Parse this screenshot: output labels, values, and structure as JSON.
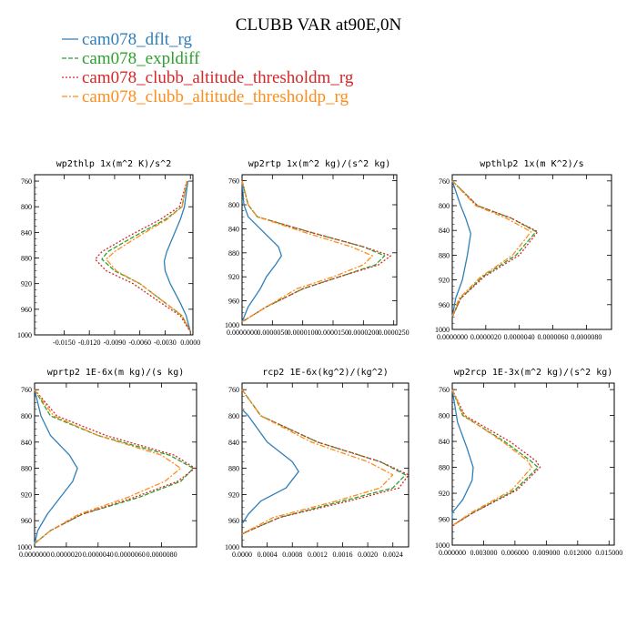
{
  "figure": {
    "title": "CLUBB VAR at90E,0N"
  },
  "colors": {
    "dflt": "#2f7fb8",
    "expldiff": "#2ea02e",
    "thresholdm": "#d62728",
    "thresholdp": "#ff8c1a"
  },
  "legend": [
    {
      "label": "cam078_dflt_rg",
      "color": "#2f7fb8",
      "style": "solid"
    },
    {
      "label": "cam078_expldiff",
      "color": "#2ea02e",
      "style": "dashed"
    },
    {
      "label": "cam078_clubb_altitude_thresholdm_rg",
      "color": "#d62728",
      "style": "dotted"
    },
    {
      "label": "cam078_clubb_altitude_thresholdp_rg",
      "color": "#ff8c1a",
      "style": "dashdot"
    }
  ],
  "chart_data": [
    {
      "type": "line",
      "title": "wp2thlp  1x(m^2 K)/s^2",
      "ylim": [
        1000,
        750
      ],
      "yticks": [
        "760",
        "800",
        "840",
        "880",
        "920",
        "960",
        "1000"
      ],
      "xlim": [
        -0.0185,
        0.0003
      ],
      "xticks": [
        "-0.0150",
        "-0.0120",
        "-0.0090",
        "-0.0060",
        "-0.0030",
        "0.0000"
      ],
      "xtick_values": [
        -0.015,
        -0.012,
        -0.009,
        -0.006,
        -0.003,
        0.0
      ],
      "series": [
        {
          "name": "cam078_dflt_rg",
          "x": [
            -0.0003,
            -0.0007,
            -0.0012,
            -0.002,
            -0.0028,
            -0.0031,
            -0.003,
            -0.0024,
            -0.0012,
            -0.0005,
            0.0
          ],
          "y": [
            760,
            800,
            820,
            845,
            870,
            885,
            900,
            920,
            950,
            970,
            995
          ]
        },
        {
          "name": "cam078_expldiff",
          "x": [
            -0.0004,
            -0.001,
            -0.003,
            -0.0065,
            -0.0098,
            -0.0105,
            -0.009,
            -0.006,
            -0.003,
            -0.001,
            0.0
          ],
          "y": [
            760,
            800,
            820,
            845,
            870,
            882,
            900,
            920,
            950,
            970,
            995
          ]
        },
        {
          "name": "cam078_clubb_altitude_thresholdm_rg",
          "x": [
            -0.0004,
            -0.0013,
            -0.0036,
            -0.0072,
            -0.0105,
            -0.0113,
            -0.01,
            -0.0068,
            -0.0035,
            -0.0012,
            0.0
          ],
          "y": [
            760,
            800,
            820,
            845,
            870,
            882,
            900,
            920,
            950,
            970,
            995
          ]
        },
        {
          "name": "cam078_clubb_altitude_thresholdp_rg",
          "x": [
            -0.0004,
            -0.001,
            -0.0028,
            -0.006,
            -0.009,
            -0.01,
            -0.0088,
            -0.006,
            -0.003,
            -0.001,
            0.0
          ],
          "y": [
            760,
            800,
            820,
            845,
            870,
            882,
            900,
            920,
            950,
            970,
            995
          ]
        }
      ]
    },
    {
      "type": "line",
      "title": "wp2rtp  1x(m^2 kg)/(s^2 kg)",
      "ylim": [
        1000,
        750
      ],
      "yticks": [
        "760",
        "800",
        "840",
        "880",
        "920",
        "960",
        "1000"
      ],
      "xlim": [
        0.0,
        2.55e-05
      ],
      "xticks": [
        "0.0000000",
        "0.0000050",
        "0.0000100",
        "0.0000150",
        "0.0000200",
        "0.0000250"
      ],
      "xtick_values": [
        0.0,
        5e-06,
        1e-05,
        1.5e-05,
        2e-05,
        2.5e-05
      ],
      "series": [
        {
          "name": "cam078_dflt_rg",
          "x": [
            0.0,
            3e-07,
            1e-06,
            3.5e-06,
            6e-06,
            6.5e-06,
            5.5e-06,
            4e-06,
            3e-06,
            1e-06,
            0.0
          ],
          "y": [
            760,
            800,
            820,
            845,
            870,
            885,
            900,
            920,
            940,
            970,
            995
          ]
        },
        {
          "name": "cam078_expldiff",
          "x": [
            0.0,
            1e-06,
            2.5e-06,
            1.1e-05,
            2e-05,
            2.35e-05,
            2.2e-05,
            1.6e-05,
            1e-05,
            4e-06,
            0.0
          ],
          "y": [
            760,
            800,
            820,
            845,
            870,
            885,
            900,
            920,
            940,
            970,
            995
          ]
        },
        {
          "name": "cam078_clubb_altitude_thresholdm_rg",
          "x": [
            0.0,
            1e-06,
            2.5e-06,
            1.1e-05,
            2e-05,
            2.45e-05,
            2.25e-05,
            1.6e-05,
            1e-05,
            4e-06,
            0.0
          ],
          "y": [
            760,
            800,
            820,
            845,
            870,
            885,
            900,
            920,
            940,
            970,
            995
          ]
        },
        {
          "name": "cam078_clubb_altitude_thresholdp_rg",
          "x": [
            0.0,
            1e-06,
            2.5e-06,
            1e-05,
            1.8e-05,
            2.15e-05,
            2e-05,
            1.5e-05,
            9e-06,
            4e-06,
            0.0
          ],
          "y": [
            760,
            800,
            820,
            845,
            870,
            885,
            900,
            920,
            940,
            970,
            995
          ]
        }
      ]
    },
    {
      "type": "line",
      "title": "wpthlp2  1x(m K^2)/s",
      "ylim": [
        1000,
        750
      ],
      "yticks": [
        "760",
        "800",
        "840",
        "880",
        "920",
        "960",
        "1000"
      ],
      "xlim": [
        0.0,
        9.5e-06
      ],
      "xticks": [
        "0.0000000",
        "0.0000020",
        "0.0000040",
        "0.0000060",
        "0.0000080"
      ],
      "xtick_values": [
        0.0,
        2e-06,
        4e-06,
        6e-06,
        8e-06
      ],
      "series": [
        {
          "name": "cam078_dflt_rg",
          "x": [
            0.0,
            5e-07,
            8e-07,
            1.1e-06,
            9e-07,
            6e-07,
            2e-07,
            0.0
          ],
          "y": [
            760,
            800,
            820,
            845,
            880,
            920,
            950,
            980
          ]
        },
        {
          "name": "cam078_expldiff",
          "x": [
            0.0,
            1.5e-06,
            3.5e-06,
            5e-06,
            3.8e-06,
            1.8e-06,
            5e-07,
            0.0
          ],
          "y": [
            760,
            800,
            820,
            842,
            880,
            915,
            950,
            980
          ]
        },
        {
          "name": "cam078_clubb_altitude_thresholdm_rg",
          "x": [
            0.0,
            1.5e-06,
            3.5e-06,
            5.1e-06,
            4e-06,
            1.9e-06,
            5e-07,
            0.0
          ],
          "y": [
            760,
            800,
            820,
            842,
            880,
            915,
            950,
            980
          ]
        },
        {
          "name": "cam078_clubb_altitude_thresholdp_rg",
          "x": [
            0.0,
            1.4e-06,
            3.2e-06,
            4.7e-06,
            3.6e-06,
            1.7e-06,
            4e-07,
            0.0
          ],
          "y": [
            760,
            800,
            820,
            842,
            880,
            915,
            950,
            980
          ]
        }
      ]
    },
    {
      "type": "line",
      "title": "wprtp2  1E-6x(m kg)/(s kg)",
      "ylim": [
        1000,
        750
      ],
      "yticks": [
        "760",
        "800",
        "840",
        "880",
        "920",
        "960",
        "1000"
      ],
      "xlim": [
        0.0,
        1.02e-05
      ],
      "xticks": [
        "0.0000000",
        "0.0000020",
        "0.0000040",
        "0.0000060",
        "0.0000080"
      ],
      "xtick_values": [
        0.0,
        2e-06,
        4e-06,
        6e-06,
        8e-06
      ],
      "series": [
        {
          "name": "cam078_dflt_rg",
          "x": [
            0.0,
            4e-07,
            1e-06,
            2.2e-06,
            2.7e-06,
            2.4e-06,
            1.6e-06,
            8e-07,
            2e-07,
            0.0
          ],
          "y": [
            760,
            800,
            830,
            860,
            880,
            900,
            925,
            950,
            975,
            995
          ]
        },
        {
          "name": "cam078_expldiff",
          "x": [
            0.0,
            1e-06,
            4e-06,
            8.5e-06,
            1e-05,
            9.2e-06,
            6.5e-06,
            3e-06,
            1e-06,
            0.0
          ],
          "y": [
            760,
            800,
            830,
            860,
            880,
            900,
            925,
            950,
            975,
            995
          ]
        },
        {
          "name": "cam078_clubb_altitude_thresholdm_rg",
          "x": [
            0.0,
            1.4e-06,
            4.5e-06,
            8.8e-06,
            1.01e-05,
            9e-06,
            6.2e-06,
            3e-06,
            1e-06,
            0.0
          ],
          "y": [
            760,
            800,
            830,
            860,
            880,
            900,
            925,
            950,
            975,
            995
          ]
        },
        {
          "name": "cam078_clubb_altitude_thresholdp_rg",
          "x": [
            0.0,
            1.2e-06,
            4e-06,
            8e-06,
            9.2e-06,
            8.2e-06,
            5.8e-06,
            2.8e-06,
            1e-06,
            0.0
          ],
          "y": [
            760,
            800,
            830,
            860,
            880,
            900,
            925,
            950,
            975,
            995
          ]
        }
      ]
    },
    {
      "type": "line",
      "title": "rcp2  1E-6x(kg^2)/(kg^2)",
      "ylim": [
        1000,
        750
      ],
      "yticks": [
        "760",
        "800",
        "840",
        "880",
        "920",
        "960",
        "1000"
      ],
      "xlim": [
        0.0,
        0.00265
      ],
      "xticks": [
        "0.0000",
        "0.0004",
        "0.0008",
        "0.0012",
        "0.0016",
        "0.0020",
        "0.0024"
      ],
      "xtick_values": [
        0.0,
        0.0004,
        0.0008,
        0.0012,
        0.0016,
        0.002,
        0.0024
      ],
      "series": [
        {
          "name": "cam078_dflt_rg",
          "x": [
            0.0,
            0.0001,
            0.0004,
            0.0008,
            0.0009,
            0.0007,
            0.0003,
            0.0001,
            0.0
          ],
          "y": [
            790,
            800,
            840,
            870,
            885,
            910,
            930,
            950,
            965
          ]
        },
        {
          "name": "cam078_expldiff",
          "x": [
            0.0,
            0.0003,
            0.0012,
            0.0022,
            0.0026,
            0.0024,
            0.0016,
            0.0006,
            0.0
          ],
          "y": [
            760,
            800,
            840,
            870,
            890,
            910,
            930,
            955,
            980
          ]
        },
        {
          "name": "cam078_clubb_altitude_thresholdm_rg",
          "x": [
            0.0,
            0.0003,
            0.0012,
            0.0022,
            0.00265,
            0.0025,
            0.0017,
            0.0006,
            0.0
          ],
          "y": [
            760,
            800,
            840,
            870,
            890,
            910,
            930,
            955,
            980
          ]
        },
        {
          "name": "cam078_clubb_altitude_thresholdp_rg",
          "x": [
            0.0,
            0.0003,
            0.0011,
            0.002,
            0.0024,
            0.0022,
            0.0015,
            0.0005,
            0.0
          ],
          "y": [
            760,
            800,
            840,
            870,
            890,
            910,
            930,
            955,
            980
          ]
        }
      ]
    },
    {
      "type": "line",
      "title": "wp2rcp  1E-3x(m^2 kg)/(s^2 kg)",
      "ylim": [
        1000,
        750
      ],
      "yticks": [
        "760",
        "800",
        "840",
        "880",
        "920",
        "960",
        "1000"
      ],
      "xlim": [
        0.0,
        0.0155
      ],
      "xticks": [
        "0.000000",
        "0.003000",
        "0.006000",
        "0.009000",
        "0.012000",
        "0.015000"
      ],
      "xtick_values": [
        0.0,
        0.003,
        0.006,
        0.009,
        0.012,
        0.015
      ],
      "series": [
        {
          "name": "cam078_dflt_rg",
          "x": [
            0.0,
            0.0005,
            0.0014,
            0.002,
            0.0019,
            0.001,
            0.0,
            0.0
          ],
          "y": [
            760,
            810,
            850,
            880,
            900,
            930,
            950,
            960
          ]
        },
        {
          "name": "cam078_expldiff",
          "x": [
            0.0,
            0.001,
            0.005,
            0.0075,
            0.0082,
            0.006,
            0.002,
            0.0
          ],
          "y": [
            760,
            800,
            840,
            870,
            880,
            915,
            950,
            970
          ]
        },
        {
          "name": "cam078_clubb_altitude_thresholdm_rg",
          "x": [
            0.0,
            0.0012,
            0.0055,
            0.008,
            0.0084,
            0.0062,
            0.002,
            0.0
          ],
          "y": [
            760,
            800,
            840,
            870,
            880,
            915,
            950,
            970
          ]
        },
        {
          "name": "cam078_clubb_altitude_thresholdp_rg",
          "x": [
            0.0,
            0.0011,
            0.0048,
            0.0072,
            0.0076,
            0.0057,
            0.0018,
            0.0
          ],
          "y": [
            760,
            800,
            840,
            870,
            880,
            915,
            950,
            970
          ]
        }
      ]
    }
  ]
}
